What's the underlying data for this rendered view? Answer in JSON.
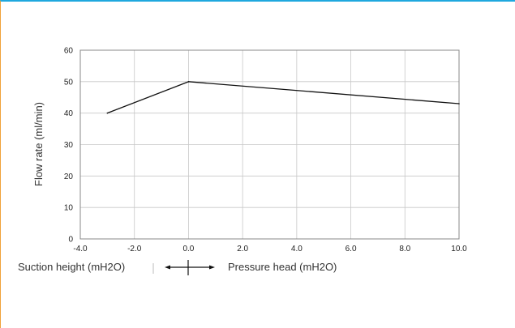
{
  "chart_data": {
    "type": "line",
    "title": "",
    "ylabel": "Flow rate (ml/min)",
    "xlabel_left": "Suction height (mH2O)",
    "xlabel_right": "Pressure head (mH2O)",
    "xlim": [
      -4,
      10
    ],
    "ylim": [
      0,
      60
    ],
    "x_ticks": [
      "-4.0",
      "-2.0",
      "0.0",
      "2.0",
      "4.0",
      "6.0",
      "8.0",
      "10.0"
    ],
    "y_ticks": [
      "0",
      "10",
      "20",
      "30",
      "40",
      "50",
      "60"
    ],
    "grid": true,
    "series": [
      {
        "x": [
          -3,
          0,
          10
        ],
        "y": [
          40,
          50,
          43
        ]
      }
    ],
    "colors": {
      "line": "#111111",
      "grid": "#c8c8c8",
      "frame": "#888888"
    }
  }
}
